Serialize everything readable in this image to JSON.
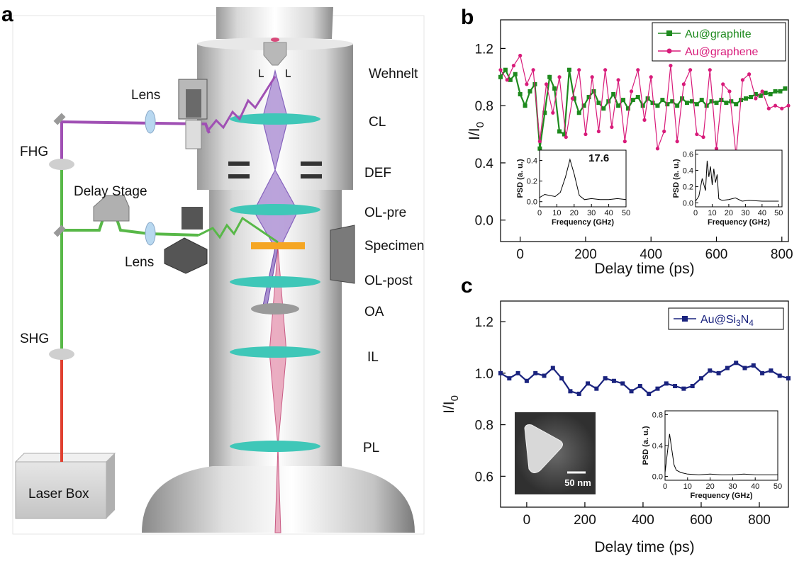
{
  "panels": {
    "a": "a",
    "b": "b",
    "c": "c"
  },
  "schematic": {
    "labels": {
      "wehnelt": "Wehnelt",
      "cl": "CL",
      "def": "DEF",
      "ol_pre": "OL-pre",
      "specimen": "Specimen",
      "ol_post": "OL-post",
      "oa": "OA",
      "il": "IL",
      "pl": "PL",
      "lens_top": "Lens",
      "lens_bottom": "Lens",
      "fhg": "FHG",
      "delay_stage": "Delay Stage",
      "shg": "SHG",
      "laser_box": "Laser Box"
    },
    "colors": {
      "uv_beam": "#a050b4",
      "green_beam": "#58b848",
      "red_beam": "#e04030",
      "electron_beam": "#8a5cc8",
      "lens": "#3fc7b8",
      "specimen": "#f5a623"
    }
  },
  "chart_data": [
    {
      "type": "line",
      "panel": "b",
      "xlabel": "Delay time (ps)",
      "ylabel_main": "I/I",
      "ylabel_sub": "0",
      "xlim": [
        -60,
        820
      ],
      "ylim": [
        -0.15,
        1.4
      ],
      "xticks": [
        0,
        200,
        400,
        600,
        800
      ],
      "yticks": [
        0.0,
        0.4,
        0.8,
        1.2
      ],
      "xtick_labels": [
        "0",
        "200",
        "400",
        "600",
        "800"
      ],
      "ytick_labels": [
        "0.0",
        "0.4",
        "0.8",
        "1.2"
      ],
      "legend_position": "top-right",
      "series": [
        {
          "name": "Au@graphite",
          "color": "#1e8a1e",
          "x": [
            -60,
            -45,
            -30,
            -15,
            0,
            15,
            30,
            45,
            60,
            75,
            90,
            105,
            120,
            135,
            150,
            165,
            180,
            195,
            210,
            225,
            240,
            255,
            270,
            285,
            300,
            315,
            330,
            345,
            360,
            375,
            390,
            405,
            420,
            435,
            450,
            465,
            480,
            495,
            510,
            525,
            540,
            555,
            570,
            585,
            600,
            615,
            630,
            645,
            660,
            675,
            690,
            705,
            720,
            735,
            750,
            765,
            780,
            795,
            810
          ],
          "y": [
            1.0,
            1.05,
            0.98,
            1.02,
            0.88,
            0.8,
            0.9,
            0.95,
            0.5,
            0.75,
            1.0,
            0.92,
            0.62,
            0.6,
            1.05,
            0.85,
            0.75,
            0.8,
            0.86,
            0.9,
            0.82,
            0.78,
            0.83,
            0.88,
            0.8,
            0.84,
            0.78,
            0.84,
            0.86,
            0.8,
            0.85,
            0.82,
            0.8,
            0.84,
            0.81,
            0.83,
            0.8,
            0.85,
            0.82,
            0.83,
            0.81,
            0.84,
            0.8,
            0.83,
            0.82,
            0.84,
            0.82,
            0.83,
            0.81,
            0.84,
            0.85,
            0.86,
            0.88,
            0.87,
            0.89,
            0.88,
            0.9,
            0.9,
            0.92
          ]
        },
        {
          "name": "Au@graphene",
          "color": "#d81b7a",
          "x": [
            -60,
            -40,
            -20,
            0,
            20,
            40,
            60,
            80,
            100,
            120,
            140,
            160,
            180,
            200,
            220,
            240,
            260,
            280,
            300,
            320,
            340,
            360,
            380,
            400,
            420,
            440,
            460,
            480,
            500,
            520,
            540,
            560,
            580,
            600,
            620,
            640,
            660,
            680,
            700,
            720,
            740,
            760,
            780,
            800,
            820
          ],
          "y": [
            1.05,
            0.98,
            1.08,
            1.15,
            0.95,
            1.05,
            0.55,
            0.95,
            0.75,
            1.0,
            0.58,
            0.85,
            1.05,
            0.6,
            1.0,
            0.62,
            1.05,
            0.65,
            0.98,
            0.55,
            0.9,
            1.05,
            0.7,
            1.0,
            0.5,
            0.62,
            1.08,
            0.55,
            0.95,
            1.05,
            0.6,
            0.58,
            1.05,
            0.5,
            0.95,
            0.9,
            0.45,
            0.98,
            1.02,
            0.85,
            0.9,
            0.78,
            0.8,
            0.78,
            0.8
          ]
        }
      ],
      "insets": [
        {
          "type": "line",
          "peak_label": "17.6",
          "ylabel": "PSD (a. u.)",
          "xlabel": "Frequency (GHz)",
          "xlim": [
            0,
            50
          ],
          "ylim": [
            -0.05,
            0.5
          ],
          "xticks": [
            0,
            10,
            20,
            30,
            40,
            50
          ],
          "yticks": [
            0.0,
            0.2,
            0.4
          ],
          "x": [
            0,
            3,
            6,
            9,
            12,
            15,
            17.6,
            20,
            23,
            26,
            30,
            35,
            40,
            45,
            50
          ],
          "y": [
            0.04,
            0.07,
            0.06,
            0.05,
            0.09,
            0.24,
            0.41,
            0.27,
            0.06,
            0.02,
            0.03,
            0.02,
            0.02,
            0.03,
            0.02
          ]
        },
        {
          "type": "line",
          "ylabel": "PSD (a. u.)",
          "xlabel": "Frequency (GHz)",
          "xlim": [
            0,
            52
          ],
          "ylim": [
            -0.05,
            0.65
          ],
          "xticks": [
            0,
            10,
            20,
            30,
            40,
            50
          ],
          "yticks": [
            0.0,
            0.2,
            0.4,
            0.6
          ],
          "x": [
            0,
            2,
            4,
            6,
            7,
            8,
            9,
            10,
            11,
            12,
            13,
            14,
            16,
            20,
            24,
            28,
            32,
            40,
            45,
            50
          ],
          "y": [
            0.02,
            0.08,
            0.3,
            0.15,
            0.52,
            0.32,
            0.45,
            0.22,
            0.42,
            0.25,
            0.35,
            0.05,
            0.03,
            0.04,
            0.06,
            0.02,
            0.03,
            0.02,
            0.02,
            0.02
          ]
        }
      ]
    },
    {
      "type": "line",
      "panel": "c",
      "xlabel": "Delay time (ps)",
      "ylabel_main": "I/I",
      "ylabel_sub": "0",
      "xlim": [
        -90,
        900
      ],
      "ylim": [
        0.48,
        1.28
      ],
      "xticks": [
        0,
        200,
        400,
        600,
        800
      ],
      "yticks": [
        0.6,
        0.8,
        1.0,
        1.2
      ],
      "xtick_labels": [
        "0",
        "200",
        "400",
        "600",
        "800"
      ],
      "ytick_labels": [
        "0.6",
        "0.8",
        "1.0",
        "1.2"
      ],
      "legend_position": "top-right",
      "series": [
        {
          "name": "Au@Si",
          "name_sub1": "3",
          "name_mid": "N",
          "name_sub2": "4",
          "color": "#1a237e",
          "x": [
            -90,
            -60,
            -30,
            0,
            30,
            60,
            90,
            120,
            150,
            180,
            210,
            240,
            270,
            300,
            330,
            360,
            390,
            420,
            450,
            480,
            510,
            540,
            570,
            600,
            630,
            660,
            690,
            720,
            750,
            780,
            810,
            840,
            870,
            900
          ],
          "y": [
            1.0,
            0.98,
            1.0,
            0.97,
            1.0,
            0.99,
            1.02,
            0.98,
            0.93,
            0.92,
            0.96,
            0.94,
            0.98,
            0.97,
            0.96,
            0.93,
            0.95,
            0.92,
            0.94,
            0.96,
            0.95,
            0.94,
            0.95,
            0.98,
            1.01,
            1.0,
            1.02,
            1.04,
            1.02,
            1.03,
            1.0,
            1.01,
            0.99,
            0.98
          ]
        }
      ],
      "insets": [
        {
          "type": "line",
          "ylabel": "PSD (a. u.)",
          "xlabel": "Frequency (GHz)",
          "xlim": [
            0,
            50
          ],
          "ylim": [
            -0.05,
            0.85
          ],
          "xticks": [
            0,
            10,
            20,
            30,
            40,
            50
          ],
          "yticks": [
            0.0,
            0.4,
            0.8
          ],
          "x": [
            0,
            1,
            2,
            3,
            4,
            5,
            7,
            10,
            15,
            20,
            25,
            30,
            35,
            40,
            45,
            50
          ],
          "y": [
            0.05,
            0.3,
            0.55,
            0.35,
            0.15,
            0.08,
            0.05,
            0.03,
            0.02,
            0.03,
            0.02,
            0.02,
            0.03,
            0.02,
            0.02,
            0.02
          ]
        }
      ],
      "image_inset": {
        "scale_label": "50 nm"
      }
    }
  ]
}
